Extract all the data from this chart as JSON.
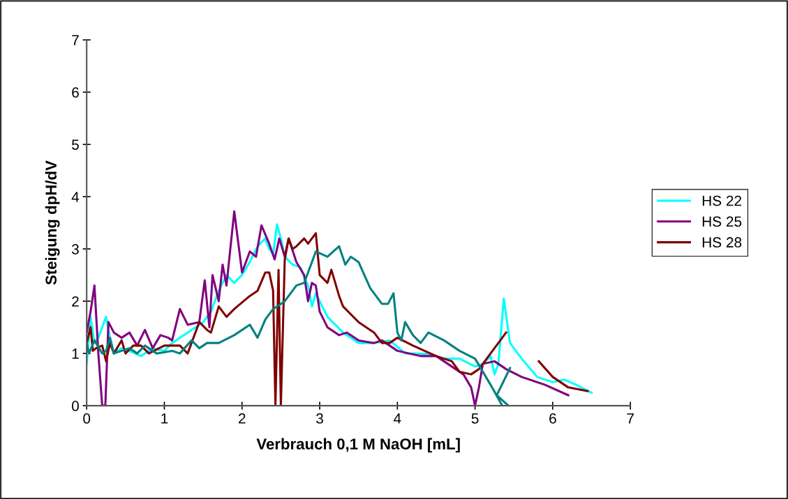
{
  "chart_data": {
    "type": "line",
    "xlabel": "Verbrauch 0,1 M NaOH [mL]",
    "ylabel": "Steigung dpH/dV",
    "xlim": [
      0,
      7
    ],
    "xticks": [
      0,
      1,
      2,
      3,
      4,
      5,
      6,
      7
    ],
    "ylim": [
      0,
      7
    ],
    "yticks": [
      0,
      1,
      2,
      3,
      4,
      5,
      6,
      7
    ],
    "grid": false,
    "legend": "right",
    "marker": "none",
    "line_style": "solid",
    "series": [
      {
        "name": "HS 22",
        "color": "#00ffff",
        "x": [
          0,
          0.05,
          0.1,
          0.15,
          0.25,
          0.3,
          0.35,
          0.45,
          0.55,
          0.7,
          0.85,
          1.0,
          1.1,
          1.3,
          1.5,
          1.6,
          1.7,
          1.8,
          1.9,
          2.0,
          2.1,
          2.2,
          2.3,
          2.35,
          2.4,
          2.45,
          2.5,
          2.55,
          2.65,
          2.75,
          2.85,
          2.9,
          2.95,
          3.0,
          3.1,
          3.3,
          3.5,
          3.7,
          3.9,
          4.1,
          4.4,
          4.6,
          4.8,
          5.0,
          5.1,
          5.2,
          5.25,
          5.3,
          5.37,
          5.45,
          5.6,
          5.8,
          6.0,
          6.15,
          6.3,
          6.5
        ],
        "values": [
          0.8,
          1.7,
          1.2,
          1.3,
          1.7,
          1.3,
          1.0,
          1.1,
          1.05,
          0.95,
          1.1,
          1.05,
          1.2,
          1.4,
          1.6,
          1.8,
          2.2,
          2.5,
          2.35,
          2.5,
          2.75,
          3.05,
          3.2,
          3.0,
          2.9,
          3.47,
          3.2,
          2.85,
          2.7,
          2.65,
          2.3,
          1.9,
          2.15,
          2.0,
          1.7,
          1.4,
          1.2,
          1.2,
          1.25,
          1.0,
          0.99,
          0.9,
          0.9,
          0.75,
          0.8,
          0.95,
          0.6,
          0.8,
          2.05,
          1.2,
          0.9,
          0.55,
          0.45,
          0.5,
          0.4,
          0.25
        ]
      },
      {
        "name": "HS 25",
        "color": "#800080",
        "x": [
          0,
          0.05,
          0.1,
          0.15,
          0.2,
          0.24,
          0.28,
          0.35,
          0.45,
          0.55,
          0.65,
          0.75,
          0.85,
          0.95,
          1.05,
          1.1,
          1.2,
          1.3,
          1.45,
          1.52,
          1.58,
          1.62,
          1.7,
          1.75,
          1.8,
          1.9,
          2.0,
          2.1,
          2.18,
          2.25,
          2.35,
          2.42,
          2.48,
          2.55,
          2.6,
          2.7,
          2.8,
          2.85,
          2.9,
          2.95,
          3.0,
          3.1,
          3.25,
          3.35,
          3.5,
          3.7,
          3.8,
          4.0,
          4.3,
          4.5,
          4.7,
          4.85,
          4.95,
          5.0,
          5.05,
          5.1,
          5.25,
          5.4,
          5.6,
          5.9,
          6.2
        ],
        "values": [
          1.4,
          1.8,
          2.3,
          1.0,
          0.0,
          0.0,
          1.6,
          1.4,
          1.3,
          1.4,
          1.15,
          1.45,
          1.1,
          1.35,
          1.3,
          1.25,
          1.85,
          1.55,
          1.6,
          2.4,
          1.5,
          2.5,
          2.0,
          2.7,
          2.3,
          3.72,
          2.55,
          2.95,
          2.85,
          3.45,
          3.1,
          2.8,
          3.2,
          2.85,
          3.2,
          2.75,
          2.5,
          2.0,
          2.35,
          2.3,
          1.8,
          1.5,
          1.35,
          1.4,
          1.25,
          1.2,
          1.25,
          1.05,
          0.95,
          0.95,
          0.75,
          0.6,
          0.35,
          0.0,
          0.35,
          0.8,
          0.85,
          0.7,
          0.55,
          0.4,
          0.2
        ]
      },
      {
        "name": "HS 28",
        "color": "#800000",
        "x": [
          0,
          0.05,
          0.08,
          0.12,
          0.2,
          0.25,
          0.3,
          0.35,
          0.45,
          0.5,
          0.6,
          0.7,
          0.8,
          1.0,
          1.2,
          1.3,
          1.45,
          1.55,
          1.6,
          1.7,
          1.8,
          1.9,
          2.1,
          2.2,
          2.3,
          2.35,
          2.4,
          2.43,
          2.47,
          2.5,
          2.55,
          2.6,
          2.65,
          2.7,
          2.8,
          2.85,
          2.95,
          3.0,
          3.1,
          3.15,
          3.25,
          3.3,
          3.5,
          3.7,
          3.8,
          3.9,
          4.0,
          4.2,
          4.5,
          4.7,
          4.8,
          4.95,
          5.05,
          5.2,
          5.4,
          5.6,
          5.82,
          6.0,
          6.2,
          6.45
        ],
        "values": [
          1.2,
          1.5,
          1.05,
          1.1,
          1.15,
          0.85,
          1.2,
          1.0,
          1.25,
          1.0,
          1.15,
          1.15,
          1.0,
          1.15,
          1.15,
          1.0,
          1.6,
          1.45,
          1.4,
          1.9,
          1.7,
          1.85,
          2.1,
          2.2,
          2.55,
          2.55,
          2.2,
          0.0,
          2.6,
          0.0,
          2.8,
          3.2,
          3.0,
          3.05,
          3.2,
          3.1,
          3.3,
          2.5,
          2.35,
          2.6,
          2.1,
          1.9,
          1.6,
          1.4,
          1.2,
          1.2,
          1.3,
          1.15,
          0.95,
          0.85,
          0.65,
          0.6,
          0.7,
          1.0,
          1.4,
          null,
          0.85,
          0.55,
          0.35,
          0.28
        ]
      },
      {
        "color": "#008080",
        "x": [
          0,
          0.03,
          0.1,
          0.2,
          0.25,
          0.3,
          0.35,
          0.45,
          0.55,
          0.65,
          0.75,
          0.9,
          1.1,
          1.2,
          1.35,
          1.45,
          1.55,
          1.7,
          1.9,
          2.1,
          2.2,
          2.3,
          2.4,
          2.55,
          2.7,
          2.8,
          2.95,
          3.1,
          3.25,
          3.33,
          3.4,
          3.5,
          3.65,
          3.8,
          3.88,
          3.95,
          4.0,
          4.05,
          4.1,
          4.2,
          4.3,
          4.4,
          4.6,
          4.8,
          5.0,
          5.2,
          5.35,
          5.4,
          5.43,
          5.28,
          5.45
        ],
        "values": [
          1.2,
          1.0,
          1.25,
          1.0,
          1.05,
          1.3,
          1.0,
          1.05,
          1.1,
          1.0,
          1.15,
          1.0,
          1.05,
          1.0,
          1.25,
          1.1,
          1.2,
          1.2,
          1.35,
          1.55,
          1.3,
          1.65,
          1.85,
          2.0,
          2.3,
          2.35,
          2.95,
          2.85,
          3.05,
          2.7,
          2.85,
          2.75,
          2.25,
          1.95,
          1.95,
          2.15,
          1.4,
          1.25,
          1.6,
          1.35,
          1.2,
          1.4,
          1.25,
          1.05,
          0.9,
          0.4,
          0.0,
          null,
          0.0,
          0.2,
          0.72
        ]
      }
    ]
  }
}
